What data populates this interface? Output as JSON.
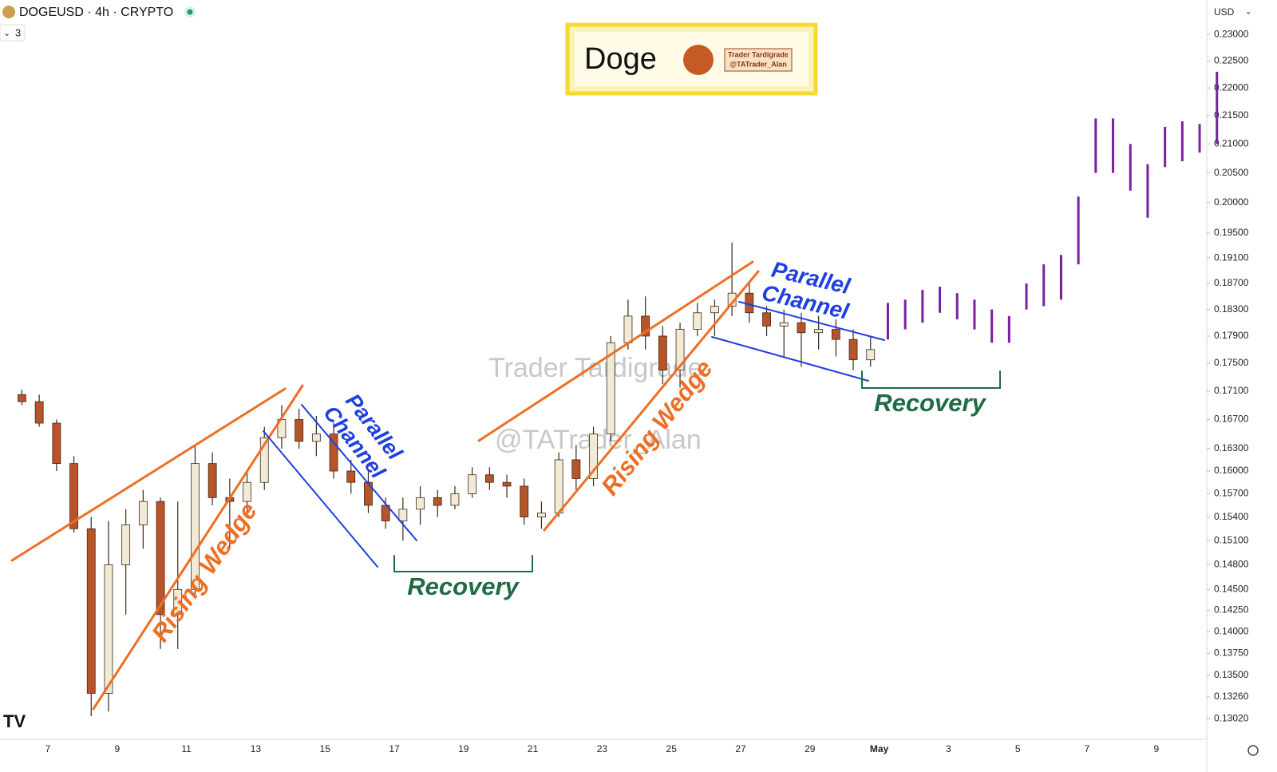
{
  "header": {
    "symbol": "DOGEUSD · 4h · CRYPTO",
    "indicators": "3",
    "currency": "USD"
  },
  "logo": {
    "title": "Doge",
    "author": "Trader Tardigrade",
    "handle": "@TATrader_Alan"
  },
  "watermark": [
    "Trader Tardigrade",
    "@TATrader_Alan"
  ],
  "annotations": [
    {
      "lines": [
        "Rising Wedge"
      ]
    },
    {
      "lines": [
        "Parallel",
        "Channel"
      ]
    },
    {
      "lines": [
        "Recovery"
      ]
    },
    {
      "lines": [
        "Rising Wedge"
      ]
    },
    {
      "lines": [
        "Parallel",
        "Channel"
      ]
    },
    {
      "lines": [
        "Recovery"
      ]
    }
  ],
  "chart_data": {
    "type": "candlestick",
    "log_scale": true,
    "up_color": "#f3ead6",
    "down_color": "#b8532a",
    "outline_color": "#3a2a1a",
    "categories": [
      null,
      null,
      "7",
      null,
      null,
      null,
      "9",
      null,
      null,
      null,
      "11",
      null,
      null,
      null,
      "13",
      null,
      null,
      null,
      "15",
      null,
      null,
      null,
      "17",
      null,
      null,
      null,
      "19",
      null,
      null,
      null,
      "21",
      null,
      null,
      null,
      "23",
      null,
      null,
      null,
      "25",
      null,
      null,
      null,
      "27",
      null,
      null,
      null,
      "29",
      null,
      null,
      null,
      "May",
      null,
      null,
      null,
      "3",
      null,
      null,
      null,
      "5",
      null,
      null,
      null,
      "7",
      null,
      null,
      null,
      "9",
      null,
      null,
      null
    ],
    "open": [
      0.1705,
      0.1695,
      0.1665,
      0.161,
      0.1525,
      0.133,
      0.148,
      0.153,
      0.156,
      0.142,
      0.145,
      0.161,
      0.1565,
      0.156,
      0.1585,
      0.1645,
      0.167,
      0.164,
      0.165,
      0.16,
      0.1585,
      0.1555,
      0.1535,
      0.155,
      0.1565,
      0.1555,
      0.157,
      0.1595,
      0.1585,
      0.158,
      0.154,
      0.1545,
      0.1615,
      0.159,
      0.165,
      0.178,
      0.182,
      0.179,
      0.174,
      0.18,
      0.1825,
      0.1835,
      0.1855,
      0.1825,
      0.1805,
      0.181,
      0.1795,
      0.18,
      0.1785,
      0.1755,
      null,
      null,
      null,
      null,
      null,
      null,
      null,
      null,
      null,
      null,
      null,
      null,
      null,
      null,
      null,
      null,
      null,
      null,
      null,
      null
    ],
    "high": [
      0.1712,
      0.1705,
      0.167,
      0.162,
      0.154,
      0.1535,
      0.155,
      0.1575,
      0.1565,
      0.156,
      0.1635,
      0.1625,
      0.159,
      0.16,
      0.166,
      0.169,
      0.1685,
      0.1675,
      0.1665,
      0.1615,
      0.16,
      0.1565,
      0.1565,
      0.158,
      0.1575,
      0.158,
      0.1605,
      0.1605,
      0.1595,
      0.159,
      0.156,
      0.1625,
      0.1635,
      0.166,
      0.179,
      0.1845,
      0.185,
      0.1805,
      0.181,
      0.184,
      0.1845,
      0.1935,
      0.187,
      0.1835,
      0.183,
      0.1825,
      0.182,
      0.1815,
      0.18,
      0.179,
      null,
      null,
      null,
      null,
      null,
      null,
      null,
      null,
      null,
      null,
      null,
      null,
      null,
      null,
      null,
      null,
      null,
      null,
      null,
      null
    ],
    "low": [
      0.169,
      0.166,
      0.16,
      0.152,
      0.1305,
      0.131,
      0.142,
      0.15,
      0.138,
      0.138,
      0.144,
      0.1555,
      0.15,
      0.1545,
      0.1575,
      0.163,
      0.163,
      0.162,
      0.159,
      0.157,
      0.1545,
      0.1525,
      0.151,
      0.153,
      0.154,
      0.155,
      0.1565,
      0.1575,
      0.1565,
      0.153,
      0.1525,
      0.154,
      0.1575,
      0.158,
      0.164,
      0.177,
      0.177,
      0.172,
      0.1715,
      0.179,
      0.179,
      0.182,
      0.181,
      0.179,
      0.176,
      0.1745,
      0.177,
      0.176,
      0.174,
      0.1745,
      null,
      null,
      null,
      null,
      null,
      null,
      null,
      null,
      null,
      null,
      null,
      null,
      null,
      null,
      null,
      null,
      null,
      null,
      null,
      null
    ],
    "close": [
      0.1695,
      0.1665,
      0.161,
      0.1525,
      0.133,
      0.148,
      0.153,
      0.156,
      0.142,
      0.145,
      0.161,
      0.1565,
      0.156,
      0.1585,
      0.1645,
      0.167,
      0.164,
      0.165,
      0.16,
      0.1585,
      0.1555,
      0.1535,
      0.155,
      0.1565,
      0.1555,
      0.157,
      0.1595,
      0.1585,
      0.158,
      0.154,
      0.1545,
      0.1615,
      0.159,
      0.165,
      0.178,
      0.182,
      0.179,
      0.174,
      0.18,
      0.1825,
      0.1835,
      0.1855,
      0.1825,
      0.1805,
      0.181,
      0.1795,
      0.18,
      0.1785,
      0.1755,
      0.177,
      null,
      null,
      null,
      null,
      null,
      null,
      null,
      null,
      null,
      null,
      null,
      null,
      null,
      null,
      null,
      null,
      null,
      null,
      null,
      null
    ],
    "projection": {
      "color": "#7a1fa2",
      "low": [
        null,
        null,
        null,
        null,
        null,
        null,
        null,
        null,
        null,
        null,
        null,
        null,
        null,
        null,
        null,
        null,
        null,
        null,
        null,
        null,
        null,
        null,
        null,
        null,
        null,
        null,
        null,
        null,
        null,
        null,
        null,
        null,
        null,
        null,
        null,
        null,
        null,
        null,
        null,
        null,
        null,
        null,
        null,
        null,
        null,
        null,
        null,
        null,
        null,
        null,
        0.1785,
        0.18,
        0.181,
        0.1825,
        0.1815,
        0.18,
        0.178,
        0.178,
        0.183,
        0.1835,
        0.1845,
        0.19,
        0.205,
        0.205,
        0.202,
        0.1975,
        0.206,
        0.207,
        0.2085,
        0.21
      ],
      "high": [
        null,
        null,
        null,
        null,
        null,
        null,
        null,
        null,
        null,
        null,
        null,
        null,
        null,
        null,
        null,
        null,
        null,
        null,
        null,
        null,
        null,
        null,
        null,
        null,
        null,
        null,
        null,
        null,
        null,
        null,
        null,
        null,
        null,
        null,
        null,
        null,
        null,
        null,
        null,
        null,
        null,
        null,
        null,
        null,
        null,
        null,
        null,
        null,
        null,
        null,
        0.184,
        0.1845,
        0.186,
        0.1865,
        0.1855,
        0.1845,
        0.183,
        0.182,
        0.187,
        0.19,
        0.1915,
        0.201,
        0.2145,
        0.2145,
        0.21,
        0.2065,
        0.213,
        0.214,
        0.2135,
        0.223
      ]
    },
    "ylim": [
      0.1281,
      0.2367
    ],
    "yticks": [
      {
        "value": 0.23,
        "label": "0.23000"
      },
      {
        "value": 0.225,
        "label": "0.22500"
      },
      {
        "value": 0.22,
        "label": "0.22000"
      },
      {
        "value": 0.215,
        "label": "0.21500"
      },
      {
        "value": 0.21,
        "label": "0.21000"
      },
      {
        "value": 0.205,
        "label": "0.20500"
      },
      {
        "value": 0.2,
        "label": "0.20000"
      },
      {
        "value": 0.195,
        "label": "0.19500"
      },
      {
        "value": 0.191,
        "label": "0.19100"
      },
      {
        "value": 0.187,
        "label": "0.18700"
      },
      {
        "value": 0.183,
        "label": "0.18300"
      },
      {
        "value": 0.179,
        "label": "0.17900"
      },
      {
        "value": 0.175,
        "label": "0.17500"
      },
      {
        "value": 0.171,
        "label": "0.17100"
      },
      {
        "value": 0.167,
        "label": "0.16700"
      },
      {
        "value": 0.163,
        "label": "0.16300"
      },
      {
        "value": 0.16,
        "label": "0.16000"
      },
      {
        "value": 0.157,
        "label": "0.15700"
      },
      {
        "value": 0.154,
        "label": "0.15400"
      },
      {
        "value": 0.151,
        "label": "0.15100"
      },
      {
        "value": 0.148,
        "label": "0.14800"
      },
      {
        "value": 0.145,
        "label": "0.14500"
      },
      {
        "value": 0.1425,
        "label": "0.14250"
      },
      {
        "value": 0.14,
        "label": "0.14000"
      },
      {
        "value": 0.1375,
        "label": "0.13750"
      },
      {
        "value": 0.135,
        "label": "0.13500"
      },
      {
        "value": 0.1326,
        "label": "0.13260"
      },
      {
        "value": 0.1302,
        "label": "0.13020"
      }
    ]
  }
}
